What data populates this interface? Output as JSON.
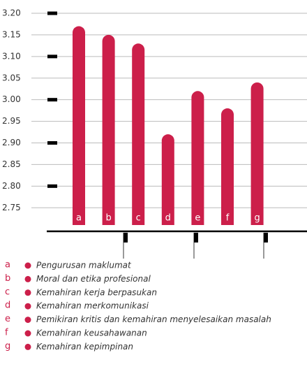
{
  "chart_data": {
    "type": "bar",
    "categories": [
      "a",
      "b",
      "c",
      "d",
      "e",
      "f",
      "g"
    ],
    "descriptions": [
      "Pengurusan maklumat",
      "Moral dan etika profesional",
      "Kemahiran kerja berpasukan",
      "Kemahiran merkomunikasi",
      "Pemikiran kritis dan kemahiran menyelesaikan masalah",
      "Kemahiran keusahawanan",
      "Kemahiran kepimpinan"
    ],
    "values": [
      3.17,
      3.15,
      3.13,
      2.92,
      3.02,
      2.98,
      3.04
    ],
    "color": "#cc1f4a",
    "ylim": [
      2.71,
      3.2
    ],
    "yticks": [
      {
        "value": 3.2,
        "label": "3.20"
      },
      3.15,
      {
        "value": 3.1,
        "label": "3.10"
      },
      3.05,
      {
        "value": 3.0,
        "label": "3.00"
      },
      2.95,
      {
        "value": 2.9,
        "label": "2.90"
      },
      2.85,
      {
        "value": 2.8,
        "label": "2.80"
      },
      2.75
    ],
    "grid": true
  }
}
